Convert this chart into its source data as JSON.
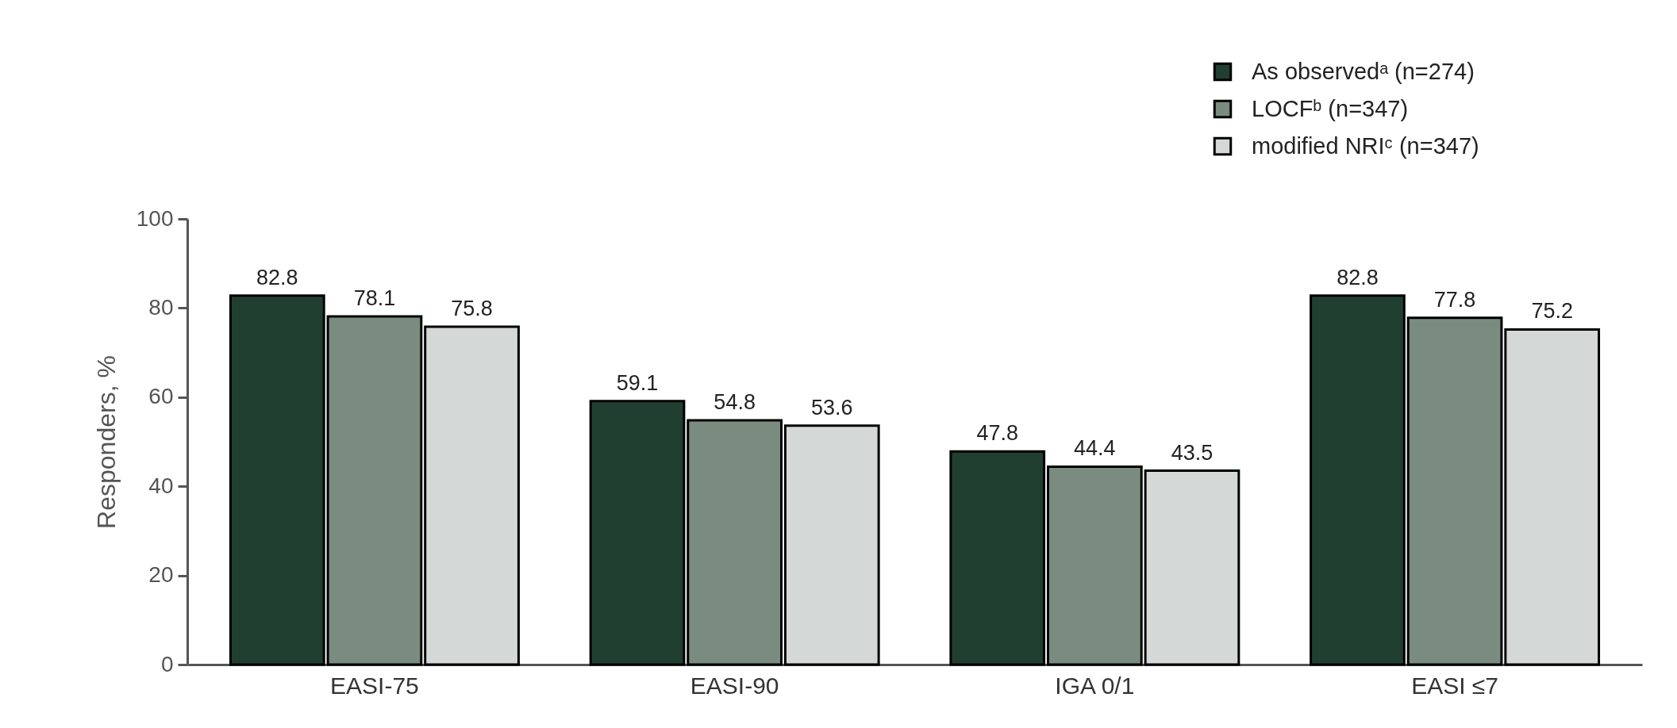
{
  "chart_data": {
    "type": "bar",
    "ylabel": "Responders, %",
    "categories": [
      "EASI-75",
      "EASI-90",
      "IGA 0/1",
      "EASI ≤7"
    ],
    "series": [
      {
        "name": "As observedᵃ (n=274)",
        "color": "#213f30",
        "values": [
          82.8,
          59.1,
          47.8,
          82.8
        ]
      },
      {
        "name": "LOCFᵇ (n=347)",
        "color": "#7a8b80",
        "values": [
          78.1,
          54.8,
          44.4,
          77.8
        ]
      },
      {
        "name": "modified NRIᶜ (n=347)",
        "color": "#d4d9d7",
        "values": [
          75.8,
          53.6,
          43.5,
          75.2
        ]
      }
    ],
    "ylim": [
      0,
      100
    ],
    "yticks": [
      0,
      20,
      40,
      60,
      80,
      100
    ],
    "data_labels": true,
    "legend": "top right",
    "grid": false
  }
}
